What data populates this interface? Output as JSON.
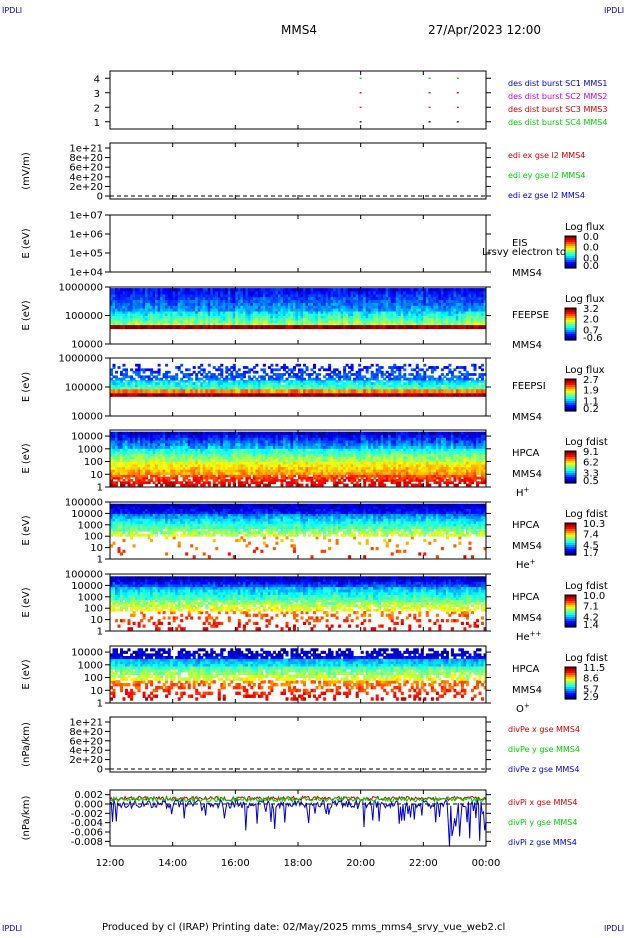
{
  "corner_logo": "IPDLI",
  "header": {
    "mission": "MMS4",
    "datetime": "27/Apr/2023 12:00"
  },
  "footer": {
    "text": "Produced by cl (IRAP)   Printing date: 02/May/2025   mms_mms4_srvy_vue_web2.cl"
  },
  "colors": {
    "red": "#cc0000",
    "green": "#00cc00",
    "blue": "#0000cc",
    "magenta": "#cc00cc",
    "axis": "#000000"
  },
  "chart_data": [
    {
      "type": "scatter",
      "ylabel": "",
      "yticks": [
        "1",
        "2",
        "3",
        "4"
      ],
      "ylim": [
        0.5,
        4.5
      ],
      "series": [
        {
          "name": "des dist burst SC1 MMS1",
          "color": "#0000cc",
          "y": 1,
          "x": [
            20.0,
            22.2,
            23.1
          ]
        },
        {
          "name": "des dist burst SC2 MMS2",
          "color": "#cc00cc",
          "y": 2,
          "x": [
            20.0,
            22.2,
            23.1
          ]
        },
        {
          "name": "des dist burst SC3 MMS3",
          "color": "#cc0000",
          "y": 3,
          "x": [
            20.0,
            22.2,
            23.1
          ]
        },
        {
          "name": "des dist burst SC4 MMS4",
          "color": "#00cc00",
          "y": 4,
          "x": [
            20.0,
            22.2,
            23.1
          ]
        }
      ]
    },
    {
      "type": "line",
      "ylabel": "(mV/m)",
      "yticks": [
        "0",
        "2e+20",
        "4e+20",
        "6e+20",
        "8e+20",
        "1e+21"
      ],
      "ylim": [
        0,
        1e+21
      ],
      "series": [
        {
          "name": "edi ex gse l2 MMS4",
          "color": "#cc0000"
        },
        {
          "name": "edi ey gse l2 MMS4",
          "color": "#00cc00"
        },
        {
          "name": "edi ez gse l2 MMS4",
          "color": "#0000cc"
        }
      ]
    },
    {
      "type": "heatmap",
      "ylabel": "E (eV)",
      "yticks": [
        "1e+04",
        "1e+05",
        "1e+06",
        "1e+07"
      ],
      "ylim": [
        10000,
        10000000
      ],
      "labels": [
        "EIS",
        "MMS4"
      ],
      "overlay": "Lrsvy electron to",
      "colorbar": {
        "title": "Log flux",
        "ticks": [
          "0.0",
          "0.0",
          "0.0",
          "0.0"
        ]
      }
    },
    {
      "type": "heatmap",
      "ylabel": "E (eV)",
      "yticks": [
        "10000",
        "100000",
        "1000000"
      ],
      "ylim": [
        10000,
        1000000
      ],
      "labels": [
        "FEEPSE",
        "MMS4"
      ],
      "colorbar": {
        "title": "Log flux",
        "ticks": [
          "3.2",
          "2.0",
          "0.7",
          "-0.6"
        ]
      }
    },
    {
      "type": "heatmap",
      "ylabel": "E (eV)",
      "yticks": [
        "10000",
        "100000",
        "1000000"
      ],
      "ylim": [
        10000,
        1000000
      ],
      "labels": [
        "FEEPSI",
        "MMS4"
      ],
      "colorbar": {
        "title": "Log flux",
        "ticks": [
          "2.7",
          "1.9",
          "1.1",
          "0.2"
        ]
      }
    },
    {
      "type": "heatmap",
      "ylabel": "E (eV)",
      "yticks": [
        "1",
        "10",
        "100",
        "1000",
        "10000"
      ],
      "ylim": [
        1,
        30000
      ],
      "labels": [
        "HPCA",
        "MMS4",
        "H+"
      ],
      "colorbar": {
        "title": "Log fdist",
        "ticks": [
          "9.1",
          "6.2",
          "3.3",
          "0.5"
        ]
      }
    },
    {
      "type": "heatmap",
      "ylabel": "E (eV)",
      "yticks": [
        "1",
        "10",
        "100",
        "1000",
        "10000",
        "100000"
      ],
      "ylim": [
        1,
        100000
      ],
      "labels": [
        "HPCA",
        "MMS4",
        "He+"
      ],
      "colorbar": {
        "title": "Log fdist",
        "ticks": [
          "10.3",
          "7.4",
          "4.5",
          "1.7"
        ]
      }
    },
    {
      "type": "heatmap",
      "ylabel": "E (eV)",
      "yticks": [
        "1",
        "10",
        "100",
        "1000",
        "10000",
        "100000"
      ],
      "ylim": [
        1,
        100000
      ],
      "labels": [
        "HPCA",
        "MMS4",
        "He++"
      ],
      "colorbar": {
        "title": "Log fdist",
        "ticks": [
          "10.0",
          "7.1",
          "4.2",
          "1.4"
        ]
      }
    },
    {
      "type": "heatmap",
      "ylabel": "E (eV)",
      "yticks": [
        "1",
        "10",
        "100",
        "1000",
        "10000"
      ],
      "ylim": [
        1,
        30000
      ],
      "labels": [
        "HPCA",
        "MMS4",
        "O+"
      ],
      "colorbar": {
        "title": "Log fdist",
        "ticks": [
          "11.5",
          "8.6",
          "5.7",
          "2.9"
        ]
      }
    },
    {
      "type": "line",
      "ylabel": "(nPa/km)",
      "yticks": [
        "0",
        "2e+20",
        "4e+20",
        "6e+20",
        "8e+20",
        "1e+21"
      ],
      "ylim": [
        0,
        1e+21
      ],
      "series": [
        {
          "name": "divPe x gse MMS4",
          "color": "#cc0000"
        },
        {
          "name": "divPe y gse MMS4",
          "color": "#00cc00"
        },
        {
          "name": "divPe z gse MMS4",
          "color": "#0000cc"
        }
      ]
    },
    {
      "type": "line",
      "ylabel": "(nPa/km)",
      "yticks": [
        "-0.008",
        "-0.006",
        "-0.004",
        "-0.002",
        "0.000",
        "0.002"
      ],
      "ylim": [
        -0.009,
        0.003
      ],
      "series": [
        {
          "name": "divPi x gse MMS4",
          "color": "#cc0000"
        },
        {
          "name": "divPi y gse MMS4",
          "color": "#00cc00"
        },
        {
          "name": "divPi z gse MMS4",
          "color": "#0000cc"
        }
      ]
    }
  ],
  "xaxis": {
    "ticks": [
      "12:00",
      "14:00",
      "16:00",
      "18:00",
      "20:00",
      "22:00",
      "00:00"
    ],
    "xlim": [
      12,
      24
    ]
  }
}
